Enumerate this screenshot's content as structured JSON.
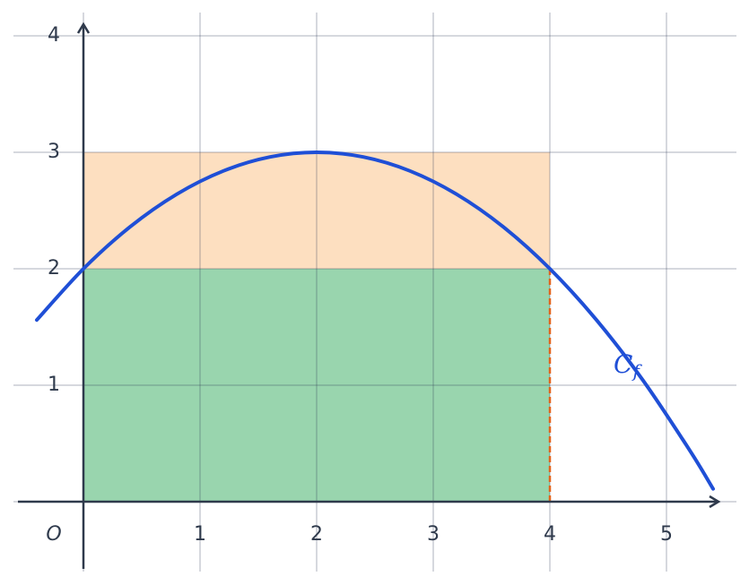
{
  "chart_data": {
    "type": "function",
    "origin_label": "O",
    "xlim": [
      -0.6,
      5.6
    ],
    "ylim": [
      -0.6,
      4.2
    ],
    "xticks": [
      1,
      2,
      3,
      4,
      5
    ],
    "yticks": [
      1,
      2,
      3,
      4
    ],
    "xgrid": [
      0,
      1,
      2,
      3,
      4,
      5
    ],
    "ygrid": [
      0,
      1,
      2,
      3,
      4
    ],
    "grid": true,
    "rects": [
      {
        "x": [
          0,
          4
        ],
        "y": [
          0,
          2
        ],
        "color": "#99d5ae"
      },
      {
        "x": [
          0,
          4
        ],
        "y": [
          2,
          3
        ],
        "color": "#fddfc0"
      }
    ],
    "dashed": {
      "x": 4,
      "y": [
        0,
        2
      ],
      "color": "#e4641c"
    },
    "curve": {
      "label": {
        "main": "C",
        "sub": "f"
      },
      "color": "#1f4fd6",
      "x": [
        -0.4,
        0,
        0.4,
        0.8,
        1.2,
        1.6,
        2,
        2.4,
        2.8,
        3.2,
        3.6,
        4,
        4.4,
        4.8,
        5.2,
        5.4
      ],
      "values": [
        1.56,
        2,
        2.36,
        2.64,
        2.84,
        2.96,
        3,
        2.96,
        2.84,
        2.64,
        2.36,
        2,
        1.56,
        1.04,
        0.44,
        0.11
      ]
    }
  }
}
